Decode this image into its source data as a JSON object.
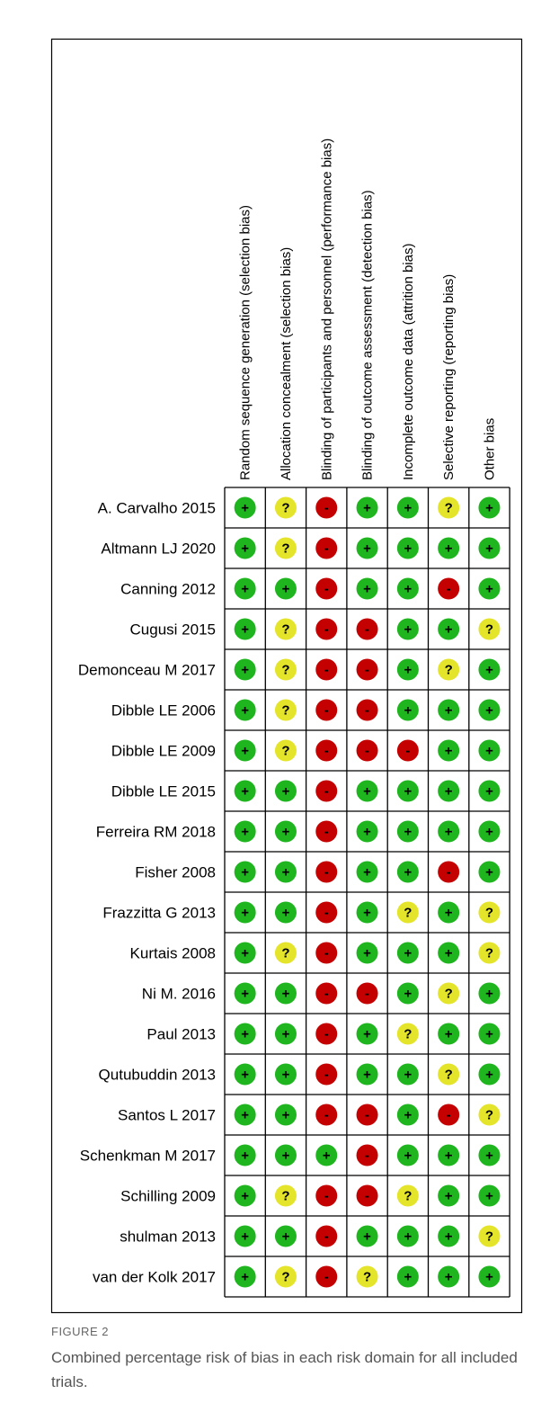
{
  "figure": {
    "domains": [
      "Random sequence generation (selection bias)",
      "Allocation concealment (selection bias)",
      "Blinding of participants and personnel (performance bias)",
      "Blinding of outcome assessment (detection bias)",
      "Incomplete outcome data (attrition bias)",
      "Selective reporting (reporting bias)",
      "Other bias"
    ],
    "studies": [
      "A. Carvalho 2015",
      "Altmann LJ 2020",
      "Canning 2012",
      "Cugusi 2015",
      "Demonceau M 2017",
      "Dibble LE 2006",
      "Dibble LE 2009",
      "Dibble LE 2015",
      "Ferreira RM 2018",
      "Fisher 2008",
      "Frazzitta G 2013",
      "Kurtais 2008",
      "Ni M. 2016",
      "Paul 2013",
      "Qutubuddin 2013",
      "Santos L 2017",
      "Schenkman M  2017",
      "Schilling 2009",
      "shulman 2013",
      "van der Kolk 2017"
    ],
    "judgments": [
      [
        "+",
        "?",
        "-",
        "+",
        "+",
        "?",
        "+"
      ],
      [
        "+",
        "?",
        "-",
        "+",
        "+",
        "+",
        "+"
      ],
      [
        "+",
        "+",
        "-",
        "+",
        "+",
        "-",
        "+"
      ],
      [
        "+",
        "?",
        "-",
        "-",
        "+",
        "+",
        "?"
      ],
      [
        "+",
        "?",
        "-",
        "-",
        "+",
        "?",
        "+"
      ],
      [
        "+",
        "?",
        "-",
        "-",
        "+",
        "+",
        "+"
      ],
      [
        "+",
        "?",
        "-",
        "-",
        "-",
        "+",
        "+"
      ],
      [
        "+",
        "+",
        "-",
        "+",
        "+",
        "+",
        "+"
      ],
      [
        "+",
        "+",
        "-",
        "+",
        "+",
        "+",
        "+"
      ],
      [
        "+",
        "+",
        "-",
        "+",
        "+",
        "-",
        "+"
      ],
      [
        "+",
        "+",
        "-",
        "+",
        "?",
        "+",
        "?"
      ],
      [
        "+",
        "?",
        "-",
        "+",
        "+",
        "+",
        "?"
      ],
      [
        "+",
        "+",
        "-",
        "-",
        "+",
        "?",
        "+"
      ],
      [
        "+",
        "+",
        "-",
        "+",
        "?",
        "+",
        "+"
      ],
      [
        "+",
        "+",
        "-",
        "+",
        "+",
        "?",
        "+"
      ],
      [
        "+",
        "+",
        "-",
        "-",
        "+",
        "-",
        "?"
      ],
      [
        "+",
        "+",
        "+",
        "-",
        "+",
        "+",
        "+"
      ],
      [
        "+",
        "?",
        "-",
        "-",
        "?",
        "+",
        "+"
      ],
      [
        "+",
        "+",
        "-",
        "+",
        "+",
        "+",
        "?"
      ],
      [
        "+",
        "?",
        "-",
        "?",
        "+",
        "+",
        "+"
      ]
    ],
    "colors": {
      "+": "#1fb51f",
      "?": "#e4e42a",
      "-": "#c40000"
    }
  },
  "caption": {
    "label": "FIGURE 2",
    "text": "Combined percentage risk of bias in each risk domain for all included trials."
  }
}
